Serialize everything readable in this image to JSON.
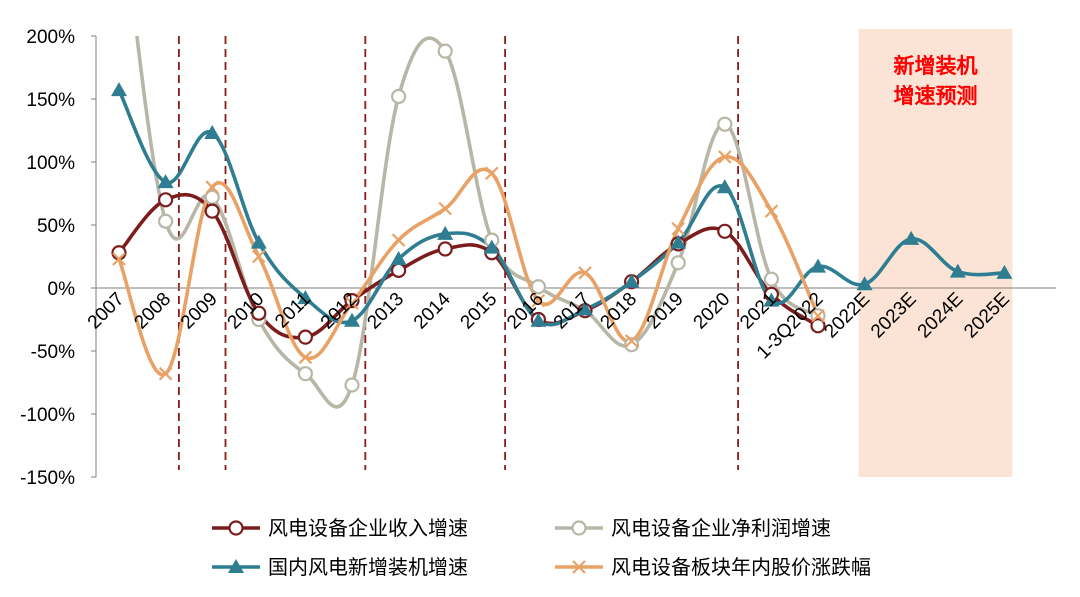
{
  "chart_data": {
    "type": "line",
    "title": "",
    "xlabel": "",
    "ylabel": "",
    "categories": [
      "2007",
      "2008",
      "2009",
      "2010",
      "2011",
      "2012",
      "2013",
      "2014",
      "2015",
      "2016",
      "2017",
      "2018",
      "2019",
      "2020",
      "2021",
      "1-3Q2022",
      "2022E",
      "2023E",
      "2024E",
      "2025E"
    ],
    "ylim": [
      -150,
      200
    ],
    "y_ticks": [
      -150,
      -100,
      -50,
      0,
      50,
      100,
      150,
      200
    ],
    "y_tick_labels": [
      "-150%",
      "-100%",
      "-50%",
      "0%",
      "50%",
      "100%",
      "150%",
      "200%"
    ],
    "grid": false,
    "legend_position": "bottom",
    "cycle_lines_after_categories": [
      "2008",
      "2009",
      "2012",
      "2015",
      "2020"
    ],
    "forecast_region": {
      "from": "2022E",
      "to": "2025E",
      "label_lines": [
        "新增装机",
        "增速预测"
      ],
      "color": "#fbe3d6"
    },
    "series": [
      {
        "name": "风电设备企业收入增速",
        "color": "#7b1d1d",
        "marker": "circle-open",
        "values": [
          28,
          70,
          61,
          -20,
          -39,
          -10,
          14,
          31,
          28,
          -25,
          -18,
          5,
          35,
          45,
          -5,
          -30,
          null,
          null,
          null,
          null
        ]
      },
      {
        "name": "风电设备企业净利润增速",
        "color": "#b8b6a6",
        "marker": "circle-open",
        "values": [
          320,
          53,
          72,
          -25,
          -68,
          -77,
          152,
          188,
          38,
          1,
          -18,
          -45,
          20,
          130,
          7,
          -22,
          null,
          null,
          null,
          null
        ]
      },
      {
        "name": "国内风电新增装机增速",
        "color": "#2e7d91",
        "marker": "triangle",
        "values": [
          157,
          84,
          123,
          36,
          -8,
          -26,
          23,
          43,
          32,
          -26,
          -17,
          5,
          36,
          80,
          -10,
          17,
          3,
          39,
          13,
          12
        ]
      },
      {
        "name": "风电设备板块年内股价涨跌幅",
        "color": "#e8a266",
        "marker": "x",
        "values": [
          23,
          -68,
          80,
          25,
          -55,
          -12,
          38,
          63,
          91,
          -10,
          12,
          -42,
          47,
          104,
          61,
          -22,
          null,
          null,
          null,
          null
        ]
      }
    ]
  }
}
